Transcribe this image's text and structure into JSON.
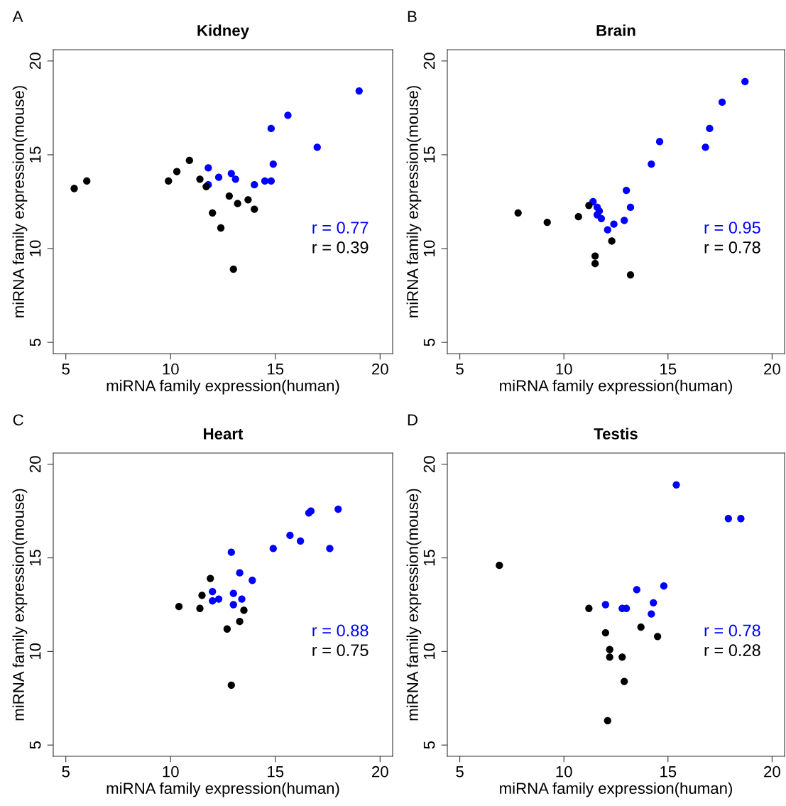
{
  "chart_data": [
    {
      "type": "scatter",
      "title": "Kidney",
      "subtitle": "A",
      "xlabel": "miRNA family expression(human)",
      "ylabel": "miRNA family expression(mouse)",
      "xlim": [
        4.4,
        20.6
      ],
      "ylim": [
        4.4,
        20.6
      ],
      "xticks": [
        5,
        10,
        15,
        20
      ],
      "yticks": [
        5,
        10,
        15,
        20
      ],
      "marker": "circle",
      "grid": false,
      "annotations": [
        "r = 0.77",
        "r = 0.39"
      ],
      "series": [
        {
          "color": "#0000ff",
          "x": [
            19.0,
            15.6,
            14.8,
            17.0,
            14.9,
            11.8,
            12.3,
            12.9,
            13.1,
            14.0,
            14.5,
            14.8,
            11.8
          ],
          "values": [
            18.4,
            17.1,
            16.4,
            15.4,
            14.5,
            14.3,
            13.8,
            14.0,
            13.7,
            13.4,
            13.6,
            13.6,
            13.4
          ]
        },
        {
          "color": "#000000",
          "x": [
            5.4,
            6.0,
            9.9,
            10.3,
            10.9,
            11.4,
            11.7,
            12.8,
            13.2,
            13.7,
            14.0,
            12.0,
            12.4,
            13.0
          ],
          "values": [
            13.2,
            13.6,
            13.6,
            14.1,
            14.7,
            13.7,
            13.3,
            12.8,
            12.4,
            12.6,
            12.1,
            11.9,
            11.1,
            8.9
          ]
        }
      ]
    },
    {
      "type": "scatter",
      "title": "Brain",
      "subtitle": "B",
      "xlabel": "miRNA family expression(human)",
      "ylabel": "miRNA family expression(mouse)",
      "xlim": [
        4.4,
        20.6
      ],
      "ylim": [
        4.4,
        20.6
      ],
      "xticks": [
        5,
        10,
        15,
        20
      ],
      "yticks": [
        5,
        10,
        15,
        20
      ],
      "marker": "circle",
      "grid": false,
      "annotations": [
        "r = 0.95",
        "r = 0.78"
      ],
      "series": [
        {
          "color": "#0000ff",
          "x": [
            18.7,
            17.6,
            17.0,
            14.6,
            16.8,
            14.2,
            13.0,
            13.2,
            11.4,
            11.6,
            11.7,
            11.6,
            11.8,
            12.9,
            12.4,
            12.1
          ],
          "values": [
            18.9,
            17.8,
            16.4,
            15.7,
            15.4,
            14.5,
            13.1,
            12.2,
            12.5,
            12.2,
            12.0,
            11.8,
            11.6,
            11.5,
            11.3,
            11.0
          ]
        },
        {
          "color": "#000000",
          "x": [
            7.8,
            9.2,
            10.7,
            11.2,
            12.3,
            11.5,
            11.5,
            13.2
          ],
          "values": [
            11.9,
            11.4,
            11.7,
            12.3,
            10.4,
            9.6,
            9.2,
            8.6
          ]
        }
      ]
    },
    {
      "type": "scatter",
      "title": "Heart",
      "subtitle": "C",
      "xlabel": "miRNA family expression(human)",
      "ylabel": "miRNA family expression(mouse)",
      "xlim": [
        4.4,
        20.6
      ],
      "ylim": [
        4.4,
        20.6
      ],
      "xticks": [
        5,
        10,
        15,
        20
      ],
      "yticks": [
        5,
        10,
        15,
        20
      ],
      "marker": "circle",
      "grid": false,
      "annotations": [
        "r = 0.88",
        "r = 0.75"
      ],
      "series": [
        {
          "color": "#0000ff",
          "x": [
            18.0,
            16.7,
            16.6,
            15.7,
            16.2,
            14.9,
            17.6,
            12.9,
            13.3,
            13.9,
            12.0,
            12.3,
            12.0,
            13.0,
            13.4,
            13.0
          ],
          "values": [
            17.6,
            17.5,
            17.4,
            16.2,
            15.9,
            15.5,
            15.5,
            15.3,
            14.2,
            13.8,
            13.2,
            12.8,
            12.7,
            13.1,
            12.8,
            12.5
          ]
        },
        {
          "color": "#000000",
          "x": [
            11.9,
            11.5,
            10.4,
            11.4,
            13.5,
            13.3,
            12.7,
            12.9
          ],
          "values": [
            13.9,
            13.0,
            12.4,
            12.3,
            12.2,
            11.6,
            11.2,
            8.2
          ]
        }
      ]
    },
    {
      "type": "scatter",
      "title": "Testis",
      "subtitle": "D",
      "xlabel": "miRNA family expression(human)",
      "ylabel": "miRNA family expression(mouse)",
      "xlim": [
        4.4,
        20.6
      ],
      "ylim": [
        4.4,
        20.6
      ],
      "xticks": [
        5,
        10,
        15,
        20
      ],
      "yticks": [
        5,
        10,
        15,
        20
      ],
      "marker": "circle",
      "grid": false,
      "annotations": [
        "r = 0.78",
        "r = 0.28"
      ],
      "series": [
        {
          "color": "#0000ff",
          "x": [
            15.4,
            17.9,
            18.5,
            14.8,
            13.5,
            14.3,
            14.2,
            12.0,
            12.8,
            13.0
          ],
          "values": [
            18.9,
            17.1,
            17.1,
            13.5,
            13.3,
            12.6,
            12.0,
            12.5,
            12.3,
            12.3
          ]
        },
        {
          "color": "#000000",
          "x": [
            6.9,
            11.2,
            12.0,
            13.7,
            14.5,
            12.2,
            12.2,
            12.8,
            12.9,
            12.1
          ],
          "values": [
            14.6,
            12.3,
            11.0,
            11.3,
            10.8,
            10.1,
            9.7,
            9.7,
            8.4,
            6.3
          ]
        }
      ]
    }
  ]
}
